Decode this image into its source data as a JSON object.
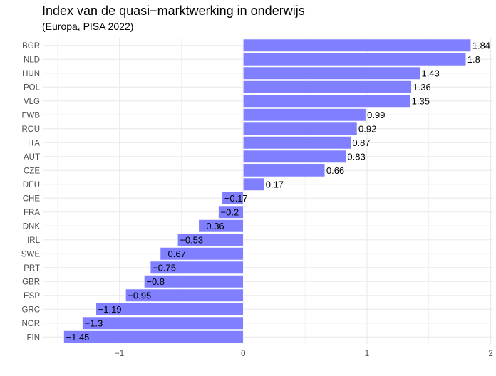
{
  "chart_data": {
    "type": "bar",
    "orientation": "horizontal",
    "title": "Index van de quasi−marktwerking in onderwijs",
    "subtitle": "(Europa, PISA 2022)",
    "xlabel": "",
    "ylabel": "",
    "xlim": [
      -1.62,
      2.02
    ],
    "xticks": [
      -1,
      0,
      1,
      2
    ],
    "xtick_labels": [
      "−1",
      "0",
      "1",
      "2"
    ],
    "grid": true,
    "bar_color": "#7f7fff",
    "categories": [
      "BGR",
      "NLD",
      "HUN",
      "POL",
      "VLG",
      "FWB",
      "ROU",
      "ITA",
      "AUT",
      "CZE",
      "DEU",
      "CHE",
      "FRA",
      "DNK",
      "IRL",
      "SWE",
      "PRT",
      "GBR",
      "ESP",
      "GRC",
      "NOR",
      "FIN"
    ],
    "values": [
      1.84,
      1.8,
      1.43,
      1.36,
      1.35,
      0.99,
      0.92,
      0.87,
      0.83,
      0.66,
      0.17,
      -0.17,
      -0.2,
      -0.36,
      -0.53,
      -0.67,
      -0.75,
      -0.8,
      -0.95,
      -1.19,
      -1.3,
      -1.45
    ],
    "data_labels": [
      "1.84",
      "1.8",
      "1.43",
      "1.36",
      "1.35",
      "0.99",
      "0.92",
      "0.87",
      "0.83",
      "0.66",
      "0.17",
      "−0.17",
      "−0.2",
      "−0.36",
      "−0.53",
      "−0.67",
      "−0.75",
      "−0.8",
      "−0.95",
      "−1.19",
      "−1.3",
      "−1.45"
    ]
  }
}
